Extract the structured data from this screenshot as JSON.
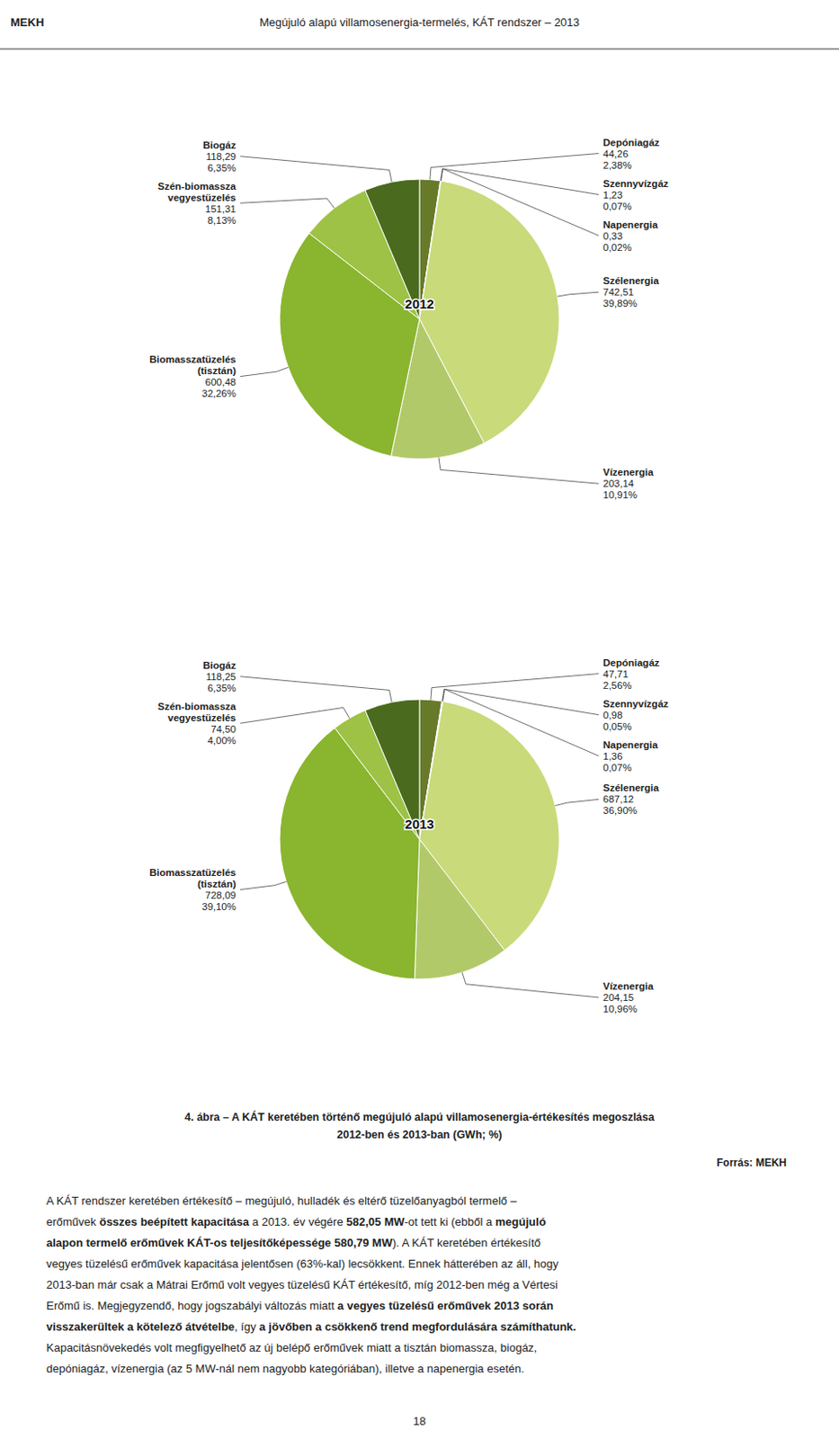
{
  "header_left": "MEKH",
  "header_right": "Megújuló alapú villamosenergia-termelés, KÁT rendszer – 2013",
  "chart_data": [
    {
      "type": "pie",
      "title": "2012",
      "categories": [
        "Depóniagáz",
        "Szennyvízgáz",
        "Napenergia",
        "Szélenergia",
        "Vízenergia",
        "Biomasszatüzelés\n(tisztán)",
        "Szén-biomassza\nvegyestüzelés",
        "Biogáz"
      ],
      "values": [
        44.26,
        1.23,
        0.33,
        742.51,
        203.14,
        600.48,
        151.31,
        118.29
      ],
      "value_labels": [
        "44,26",
        "1,23",
        "0,33",
        "742,51",
        "203,14",
        "600,48",
        "151,31",
        "118,29"
      ],
      "percent": [
        2.38,
        0.07,
        0.02,
        39.89,
        10.91,
        32.26,
        8.13,
        6.35
      ],
      "percent_labels": [
        "2,38%",
        "0,07%",
        "0,02%",
        "39,89%",
        "10,91%",
        "32,26%",
        "8,13%",
        "6,35%"
      ],
      "colors": [
        "#677a2a",
        "#c9da7a",
        "#dde99a",
        "#c9da7a",
        "#b2c96a",
        "#8ab52e",
        "#9dc245",
        "#4a6b1e"
      ],
      "data_labels": true
    },
    {
      "type": "pie",
      "title": "2013",
      "categories": [
        "Depóniagáz",
        "Szennyvízgáz",
        "Napenergia",
        "Szélenergia",
        "Vízenergia",
        "Biomasszatüzelés\n(tisztán)",
        "Szén-biomassza\nvegyestüzelés",
        "Biogáz"
      ],
      "values": [
        47.71,
        0.98,
        1.36,
        687.12,
        204.15,
        728.09,
        74.5,
        118.25
      ],
      "value_labels": [
        "47,71",
        "0,98",
        "1,36",
        "687,12",
        "204,15",
        "728,09",
        "74,50",
        "118,25"
      ],
      "percent": [
        2.56,
        0.05,
        0.07,
        36.9,
        10.96,
        39.1,
        4.0,
        6.35
      ],
      "percent_labels": [
        "2,56%",
        "0,05%",
        "0,07%",
        "36,90%",
        "10,96%",
        "39,10%",
        "4,00%",
        "6,35%"
      ],
      "colors": [
        "#677a2a",
        "#c9da7a",
        "#dde99a",
        "#c9da7a",
        "#b2c96a",
        "#8ab52e",
        "#9dc245",
        "#4a6b1e"
      ],
      "data_labels": true
    }
  ],
  "caption_line1": "4. ábra – A KÁT keretében történő megújuló alapú villamosenergia-értékesítés megoszlása",
  "caption_line2": "2012-ben és 2013-ban (GWh; %)",
  "source": "Forrás: MEKH",
  "body": [
    [
      {
        "text": "A KÁT rendszer keretében értékesítő – megújuló, hulladék és eltérő tüzelőanyagból termelő –",
        "bold": false
      }
    ],
    [
      {
        "text": "erőművek ",
        "bold": false
      },
      {
        "text": "összes beépített kapacitása",
        "bold": true
      },
      {
        "text": " a 2013. év végére ",
        "bold": false
      },
      {
        "text": "582,05 MW",
        "bold": true
      },
      {
        "text": "-ot tett ki (ebből a ",
        "bold": false
      },
      {
        "text": "megújuló",
        "bold": true
      }
    ],
    [
      {
        "text": "alapon termelő erőművek KÁT-os teljesítőképessége ",
        "bold": true
      },
      {
        "text": "580,79 MW",
        "bold": true
      },
      {
        "text": "). A KÁT keretében értékesítő",
        "bold": false
      }
    ],
    [
      {
        "text": "vegyes tüzelésű erőművek kapacitása jelentősen (63%-kal) lecsökkent. Ennek hátterében az áll, hogy",
        "bold": false
      }
    ],
    [
      {
        "text": "2013-ban már csak a Mátrai Erőmű volt vegyes tüzelésű KÁT értékesítő, míg 2012-ben még a Vértesi",
        "bold": false
      }
    ],
    [
      {
        "text": "Erőmű is. Megjegyzendő, hogy jogszabályi változás miatt ",
        "bold": false
      },
      {
        "text": "a vegyes tüzelésű erőművek 2013 során",
        "bold": true
      }
    ],
    [
      {
        "text": "visszakerültek a kötelező átvételbe",
        "bold": true
      },
      {
        "text": ", így ",
        "bold": false
      },
      {
        "text": "a jövőben a csökkenő trend megfordulására számíthatunk.",
        "bold": true
      }
    ],
    [
      {
        "text": "Kapacitásnövekedés volt megfigyelhető az új belépő erőművek miatt a tisztán biomassza, biogáz,",
        "bold": false
      }
    ],
    [
      {
        "text": "depóniagáz, vízenergia (az 5 MW-nál nem nagyobb kategóriában), illetve a napenergia esetén.",
        "bold": false
      }
    ]
  ],
  "page_number": "18"
}
